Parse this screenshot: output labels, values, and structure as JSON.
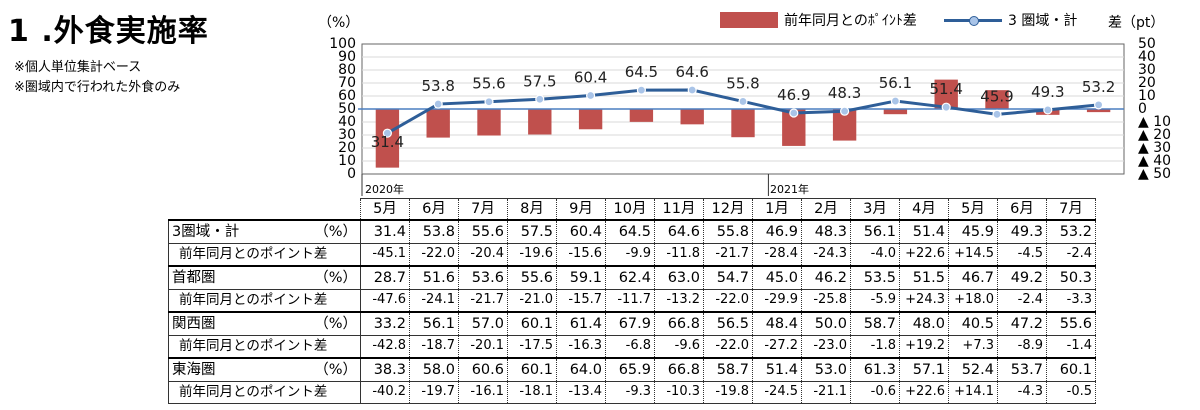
{
  "title": "1 .外食実施率",
  "notes": [
    "※個人単位集計ベース",
    "※圏域内で行われた外食のみ"
  ],
  "units": {
    "left": "（%）",
    "right": "差（pt）"
  },
  "legend": {
    "bar_label": "前年同月とのﾎﾟｲﾝﾄ差",
    "line_label": "3 圏域・計"
  },
  "years": [
    "2020年",
    "2021年"
  ],
  "colors": {
    "bar": "#c0504d",
    "line": "#2e5e98",
    "marker": "#a9c4e8",
    "ref": "#4a7fc1"
  },
  "chart_data": {
    "type": "bar+line",
    "categories": [
      "5月",
      "6月",
      "7月",
      "8月",
      "9月",
      "10月",
      "11月",
      "12月",
      "1月",
      "2月",
      "3月",
      "4月",
      "5月",
      "6月",
      "7月"
    ],
    "series": [
      {
        "name": "前年同月とのﾎﾟｲﾝﾄ差",
        "type": "bar",
        "axis": "right",
        "values": [
          -45.1,
          -22.0,
          -20.4,
          -19.6,
          -15.6,
          -9.9,
          -11.8,
          -21.7,
          -28.4,
          -24.3,
          -4.0,
          22.6,
          14.5,
          -4.5,
          -2.4
        ]
      },
      {
        "name": "3 圏域・計",
        "type": "line",
        "axis": "left",
        "values": [
          31.4,
          53.8,
          55.6,
          57.5,
          60.4,
          64.5,
          64.6,
          55.8,
          46.9,
          48.3,
          56.1,
          51.4,
          45.9,
          49.3,
          53.2
        ],
        "labels": [
          "31.4",
          "53.8",
          "55.6",
          "57.5",
          "60.4",
          "64.5",
          "64.6",
          "55.8",
          "46.9",
          "48.3",
          "56.1",
          "51.4",
          "45.9",
          "49.3",
          "53.2"
        ]
      }
    ],
    "left_axis": {
      "range": [
        0,
        100
      ],
      "ticks": [
        "100",
        "90",
        "80",
        "70",
        "60",
        "50",
        "40",
        "30",
        "20",
        "10",
        "0"
      ]
    },
    "right_axis": {
      "range": [
        -50,
        50
      ],
      "ticks": [
        "50",
        "40",
        "30",
        "20",
        "10",
        "0",
        "▲ 10",
        "▲ 20",
        "▲ 30",
        "▲ 40",
        "▲ 50"
      ]
    },
    "grid": true
  },
  "table": {
    "months": [
      "5月",
      "6月",
      "7月",
      "8月",
      "9月",
      "10月",
      "11月",
      "12月",
      "1月",
      "2月",
      "3月",
      "4月",
      "5月",
      "6月",
      "7月"
    ],
    "rows": [
      {
        "label": "3圏域・計",
        "unit": "（%）",
        "values": [
          "31.4",
          "53.8",
          "55.6",
          "57.5",
          "60.4",
          "64.5",
          "64.6",
          "55.8",
          "46.9",
          "48.3",
          "56.1",
          "51.4",
          "45.9",
          "49.3",
          "53.2"
        ]
      },
      {
        "label": "前年同月とのポイント差",
        "unit": "",
        "sub": true,
        "values": [
          "-45.1",
          "-22.0",
          "-20.4",
          "-19.6",
          "-15.6",
          "-9.9",
          "-11.8",
          "-21.7",
          "-28.4",
          "-24.3",
          "-4.0",
          "+22.6",
          "+14.5",
          "-4.5",
          "-2.4"
        ]
      },
      {
        "label": "首都圏",
        "unit": "（%）",
        "values": [
          "28.7",
          "51.6",
          "53.6",
          "55.6",
          "59.1",
          "62.4",
          "63.0",
          "54.7",
          "45.0",
          "46.2",
          "53.5",
          "51.5",
          "46.7",
          "49.2",
          "50.3"
        ]
      },
      {
        "label": "前年同月とのポイント差",
        "unit": "",
        "sub": true,
        "values": [
          "-47.6",
          "-24.1",
          "-21.7",
          "-21.0",
          "-15.7",
          "-11.7",
          "-13.2",
          "-22.0",
          "-29.9",
          "-25.8",
          "-5.9",
          "+24.3",
          "+18.0",
          "-2.4",
          "-3.3"
        ]
      },
      {
        "label": "関西圏",
        "unit": "（%）",
        "values": [
          "33.2",
          "56.1",
          "57.0",
          "60.1",
          "61.4",
          "67.9",
          "66.8",
          "56.5",
          "48.4",
          "50.0",
          "58.7",
          "48.0",
          "40.5",
          "47.2",
          "55.6"
        ]
      },
      {
        "label": "前年同月とのポイント差",
        "unit": "",
        "sub": true,
        "values": [
          "-42.8",
          "-18.7",
          "-20.1",
          "-17.5",
          "-16.3",
          "-6.8",
          "-9.6",
          "-22.0",
          "-27.2",
          "-23.0",
          "-1.8",
          "+19.2",
          "+7.3",
          "-8.9",
          "-1.4"
        ]
      },
      {
        "label": "東海圏",
        "unit": "（%）",
        "values": [
          "38.3",
          "58.0",
          "60.6",
          "60.1",
          "64.0",
          "65.9",
          "66.8",
          "58.7",
          "51.4",
          "53.0",
          "61.3",
          "57.1",
          "52.4",
          "53.7",
          "60.1"
        ]
      },
      {
        "label": "前年同月とのポイント差",
        "unit": "",
        "sub": true,
        "values": [
          "-40.2",
          "-19.7",
          "-16.1",
          "-18.1",
          "-13.4",
          "-9.3",
          "-10.3",
          "-19.8",
          "-24.5",
          "-21.1",
          "-0.6",
          "+22.6",
          "+14.1",
          "-4.3",
          "-0.5"
        ]
      }
    ]
  }
}
